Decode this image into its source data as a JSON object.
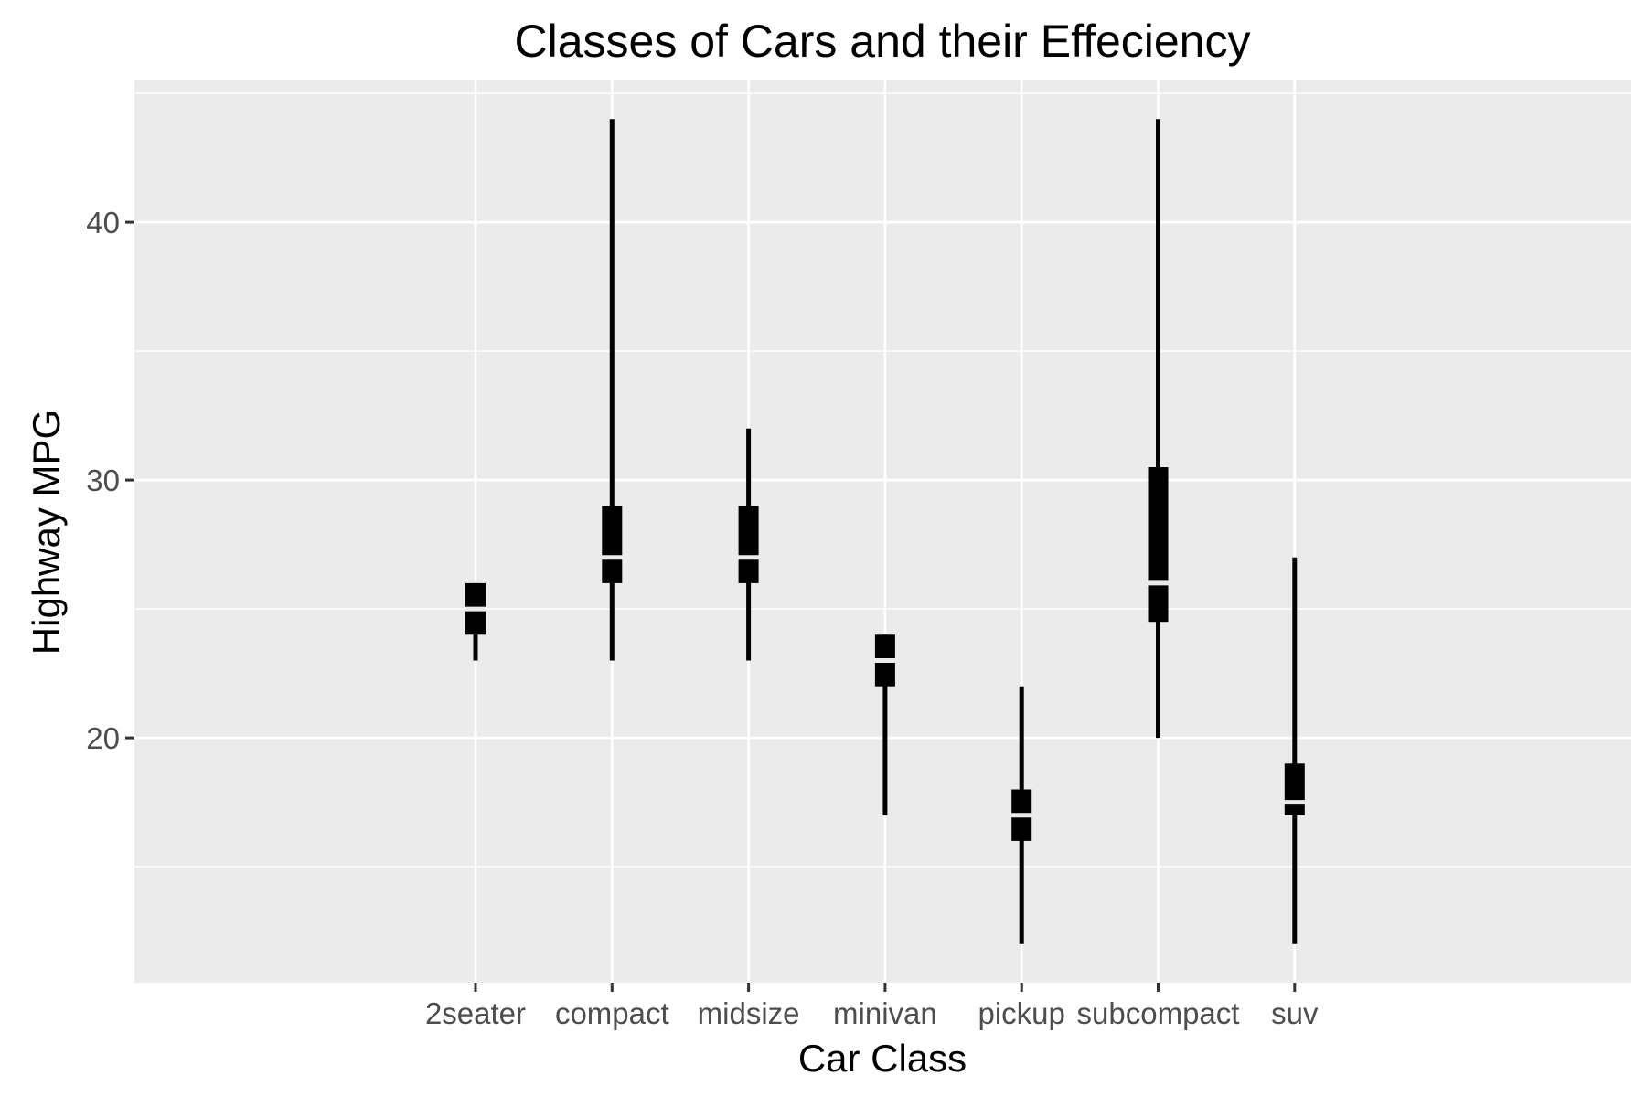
{
  "chart_data": {
    "type": "boxplot",
    "title": "Classes of Cars and their Effeciency",
    "xlabel": "Car Class",
    "ylabel": "Highway MPG",
    "categories": [
      "2seater",
      "compact",
      "midsize",
      "minivan",
      "pickup",
      "subcompact",
      "suv"
    ],
    "boxes": [
      {
        "category": "2seater",
        "min": 23,
        "q1": 24,
        "median": 25,
        "q3": 26,
        "max": 26
      },
      {
        "category": "compact",
        "min": 23,
        "q1": 26,
        "median": 27,
        "q3": 29,
        "max": 44
      },
      {
        "category": "midsize",
        "min": 23,
        "q1": 26,
        "median": 27,
        "q3": 29,
        "max": 32
      },
      {
        "category": "minivan",
        "min": 17,
        "q1": 22,
        "median": 23,
        "q3": 24,
        "max": 24
      },
      {
        "category": "pickup",
        "min": 12,
        "q1": 16,
        "median": 17,
        "q3": 18,
        "max": 22
      },
      {
        "category": "subcompact",
        "min": 20,
        "q1": 24.5,
        "median": 26,
        "q3": 30.5,
        "max": 44
      },
      {
        "category": "suv",
        "min": 12,
        "q1": 17,
        "median": 17.5,
        "q3": 19,
        "max": 27
      }
    ],
    "yticks": [
      20,
      30,
      40
    ],
    "ylim": [
      10.5,
      45.5
    ],
    "grid": true,
    "legend": "none",
    "colors": {
      "panel_background": "#ebebeb",
      "grid": "#ffffff",
      "marks": "#000000",
      "tick_label": "#4d4d4d",
      "axis_tick": "#333333"
    }
  }
}
